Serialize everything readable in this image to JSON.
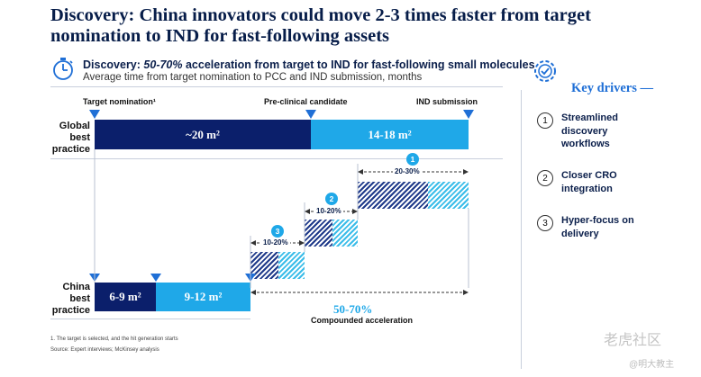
{
  "title": "Discovery: China innovators could move 2-3 times faster from target nomination to IND for fast-following assets",
  "subtitle": {
    "bold_prefix": "Discovery:",
    "italic_part": " 50-70%",
    "rest": " acceleration from target to IND for fast-following small molecules",
    "line2": "Average time from target nomination to PCC and IND submission, months"
  },
  "icons": {
    "subtitle_icon": "stopwatch-icon",
    "key_drivers_icon": "gear-checklist-icon"
  },
  "chart_data": {
    "type": "bar",
    "orientation": "horizontal-timeline",
    "milestones": [
      "Target nomination¹",
      "Pre-clinical candidate",
      "IND submission"
    ],
    "rows": [
      {
        "label_lines": [
          "Global",
          "best",
          "practice"
        ],
        "segments": [
          {
            "label": "~20 m²",
            "value": 20
          },
          {
            "label": "14-18 m²",
            "value": 16
          }
        ]
      },
      {
        "label_lines": [
          "China",
          "best",
          "practice"
        ],
        "segments": [
          {
            "label": "6-9 m²",
            "value": 7.5
          },
          {
            "label": "9-12 m²",
            "value": 10.5
          }
        ]
      }
    ],
    "steps": [
      {
        "number": "1",
        "pct_label": "20-30%"
      },
      {
        "number": "2",
        "pct_label": "10-20%"
      },
      {
        "number": "3",
        "pct_label": "10-20%"
      }
    ],
    "compounded": {
      "value": "50-70%",
      "label": "Compounded acceleration"
    },
    "colors": {
      "dark": "#0b1f6b",
      "light": "#1fa8e8",
      "accent_text": "#1fa8e8"
    }
  },
  "footnotes": [
    "1.   The target is selected, and the hit generation starts",
    "Source: Expert interviews; McKinsey analysis"
  ],
  "key_drivers": {
    "title": "Key drivers —",
    "items": [
      {
        "num": "1",
        "lines": [
          "Streamlined",
          "discovery",
          "workflows"
        ]
      },
      {
        "num": "2",
        "lines": [
          "Closer CRO",
          "integration"
        ]
      },
      {
        "num": "3",
        "lines": [
          "Hyper-focus on",
          "delivery"
        ]
      }
    ]
  },
  "watermark": {
    "line1": "老虎社区",
    "line2": "@明大教主"
  }
}
